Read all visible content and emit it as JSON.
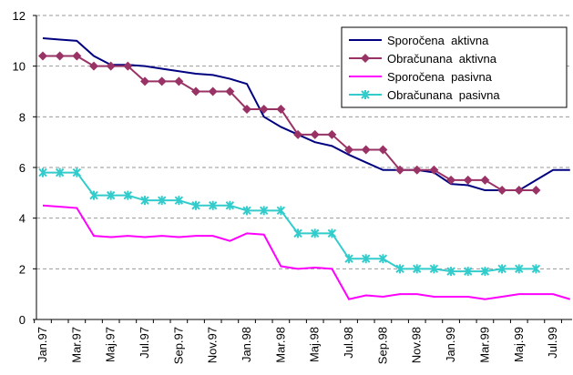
{
  "chart_data": {
    "type": "line",
    "categories": [
      "Jan.97",
      null,
      "Mar.97",
      null,
      "Maj.97",
      null,
      "Jul.97",
      null,
      "Sep.97",
      null,
      "Nov.97",
      null,
      "Jan.98",
      null,
      "Mar.98",
      null,
      "Maj.98",
      null,
      "Jul.98",
      null,
      "Sep.98",
      null,
      "Nov.98",
      null,
      "Jan.99",
      null,
      "Mar.99",
      null,
      "Maj.99",
      null,
      "Jul.99",
      null
    ],
    "series": [
      {
        "name": "Sporočena  aktivna",
        "color": "#000080",
        "marker": "none",
        "values": [
          11.1,
          11.05,
          11.0,
          10.4,
          10.05,
          10.05,
          10.0,
          9.9,
          9.8,
          9.7,
          9.65,
          9.5,
          9.3,
          8.0,
          7.6,
          7.3,
          7.0,
          6.85,
          6.5,
          6.2,
          5.9,
          5.9,
          5.9,
          5.8,
          5.35,
          5.3,
          5.1,
          5.1,
          5.1,
          5.5,
          5.9,
          5.9
        ]
      },
      {
        "name": "Obračunana  aktivna",
        "color": "#993366",
        "marker": "diamond",
        "values": [
          10.4,
          10.4,
          10.4,
          10.0,
          10.0,
          10.0,
          9.4,
          9.4,
          9.4,
          9.0,
          9.0,
          9.0,
          8.3,
          8.3,
          8.3,
          7.3,
          7.3,
          7.3,
          6.7,
          6.7,
          6.7,
          5.9,
          5.9,
          5.9,
          5.5,
          5.5,
          5.5,
          5.1,
          5.1,
          5.1,
          null,
          null
        ]
      },
      {
        "name": "Sporočena  pasivna",
        "color": "#ff00ff",
        "marker": "none",
        "values": [
          4.5,
          4.45,
          4.4,
          3.3,
          3.25,
          3.3,
          3.25,
          3.3,
          3.25,
          3.3,
          3.3,
          3.1,
          3.4,
          3.35,
          2.1,
          2.0,
          2.05,
          2.0,
          0.8,
          0.95,
          0.9,
          1.0,
          1.0,
          0.9,
          0.9,
          0.9,
          0.8,
          0.9,
          1.0,
          1.0,
          1.0,
          0.8
        ]
      },
      {
        "name": "Obračunana  pasivna",
        "color": "#33cccc",
        "marker": "star",
        "values": [
          5.8,
          5.8,
          5.8,
          4.9,
          4.9,
          4.9,
          4.7,
          4.7,
          4.7,
          4.5,
          4.5,
          4.5,
          4.3,
          4.3,
          4.3,
          3.4,
          3.4,
          3.4,
          2.4,
          2.4,
          2.4,
          2.0,
          2.0,
          2.0,
          1.9,
          1.9,
          1.9,
          2.0,
          2.0,
          2.0,
          null,
          null
        ]
      }
    ],
    "ylim": [
      0,
      12
    ],
    "yticks": [
      0,
      2,
      4,
      6,
      8,
      10,
      12
    ],
    "grid": true,
    "legend": "upper right"
  }
}
